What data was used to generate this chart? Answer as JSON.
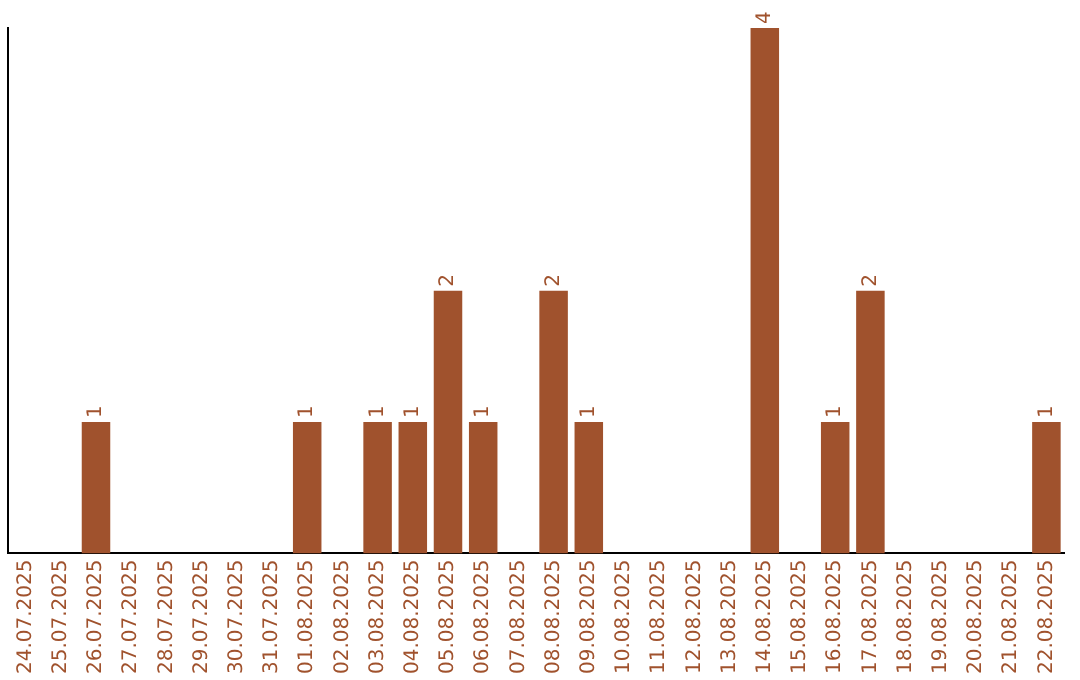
{
  "chart_data": {
    "type": "bar",
    "categories": [
      "24.07.2025",
      "25.07.2025",
      "26.07.2025",
      "27.07.2025",
      "28.07.2025",
      "29.07.2025",
      "30.07.2025",
      "31.07.2025",
      "01.08.2025",
      "02.08.2025",
      "03.08.2025",
      "04.08.2025",
      "05.08.2025",
      "06.08.2025",
      "07.08.2025",
      "08.08.2025",
      "09.08.2025",
      "10.08.2025",
      "11.08.2025",
      "12.08.2025",
      "13.08.2025",
      "14.08.2025",
      "15.08.2025",
      "16.08.2025",
      "17.08.2025",
      "18.08.2025",
      "19.08.2025",
      "20.08.2025",
      "21.08.2025",
      "22.08.2025"
    ],
    "values": [
      0,
      0,
      1,
      0,
      0,
      0,
      0,
      0,
      1,
      0,
      1,
      1,
      2,
      1,
      0,
      2,
      1,
      0,
      0,
      0,
      0,
      4,
      0,
      1,
      2,
      0,
      0,
      0,
      0,
      1
    ],
    "value_labels": [
      null,
      null,
      "1",
      null,
      null,
      null,
      null,
      null,
      "1",
      null,
      "1",
      "1",
      "2",
      "1",
      null,
      "2",
      "1",
      null,
      null,
      null,
      null,
      "4",
      null,
      "1",
      "2",
      null,
      null,
      null,
      null,
      "1"
    ],
    "color": "#a0522d",
    "grid": false,
    "legend": false
  }
}
